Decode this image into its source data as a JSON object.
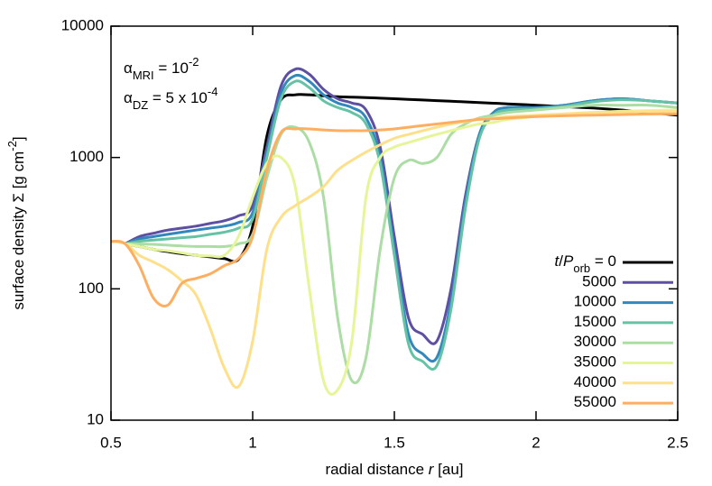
{
  "chart_data": {
    "type": "line",
    "xlabel": [
      {
        "text": "radial distance "
      },
      {
        "text": "r",
        "style": "italic"
      },
      {
        "text": " [au]"
      }
    ],
    "ylabel": [
      {
        "text": "surface density Σ [g cm"
      },
      {
        "text": "-2",
        "style": "sup"
      },
      {
        "text": "]"
      }
    ],
    "annotations": [
      [
        {
          "text": "α"
        },
        {
          "text": "MRI",
          "style": "sub"
        },
        {
          "text": " = 10"
        },
        {
          "text": "-2",
          "style": "sup"
        }
      ],
      [
        {
          "text": "α"
        },
        {
          "text": "DZ",
          "style": "sub"
        },
        {
          "text": " = 5 x 10"
        },
        {
          "text": "-4",
          "style": "sup"
        }
      ]
    ],
    "legend_prefix": [
      {
        "text": "t",
        "style": "italic"
      },
      {
        "text": "/"
      },
      {
        "text": "P",
        "style": "italic"
      },
      {
        "text": "orb",
        "style": "sub"
      },
      {
        "text": " = "
      }
    ],
    "legend": "lower right",
    "log_y": true,
    "x": [
      0.5,
      0.55,
      0.6,
      0.65,
      0.7,
      0.75,
      0.8,
      0.85,
      0.9,
      0.95,
      1.0,
      1.05,
      1.1,
      1.15,
      1.2,
      1.25,
      1.3,
      1.35,
      1.4,
      1.45,
      1.5,
      1.55,
      1.6,
      1.65,
      1.7,
      1.75,
      1.8,
      1.85,
      1.9,
      2.0,
      2.1,
      2.2,
      2.3,
      2.4,
      2.5
    ],
    "series": [
      {
        "name": "0",
        "color": "#000000",
        "values": [
          null,
          220,
          210,
          200,
          192,
          185,
          180,
          175,
          170,
          168,
          300,
          1450,
          2750,
          3000,
          3000,
          2950,
          2900,
          2880,
          2860,
          2830,
          2800,
          2770,
          2740,
          2710,
          2680,
          2650,
          2620,
          2590,
          2560,
          2500,
          2440,
          2380,
          2300,
          2200,
          2100
        ]
      },
      {
        "name": "5000",
        "color": "#5e4fa2",
        "values": [
          null,
          220,
          250,
          265,
          280,
          290,
          300,
          315,
          330,
          360,
          430,
          1200,
          3500,
          4700,
          4300,
          3300,
          2800,
          2600,
          2300,
          1200,
          250,
          60,
          45,
          40,
          100,
          500,
          1500,
          2200,
          2400,
          2400,
          2500,
          2700,
          2800,
          2700,
          2600
        ]
      },
      {
        "name": "10000",
        "color": "#3288bd",
        "values": [
          null,
          220,
          240,
          250,
          260,
          270,
          280,
          290,
          300,
          320,
          380,
          1100,
          3100,
          4200,
          3800,
          3000,
          2600,
          2400,
          2000,
          1000,
          200,
          45,
          32,
          30,
          80,
          450,
          1500,
          2200,
          2400,
          2400,
          2500,
          2700,
          2800,
          2700,
          2600
        ]
      },
      {
        "name": "15000",
        "color": "#66c2a5",
        "values": [
          null,
          220,
          230,
          235,
          240,
          245,
          250,
          260,
          270,
          290,
          340,
          1000,
          2800,
          3800,
          3400,
          2700,
          2400,
          2200,
          1800,
          900,
          180,
          38,
          28,
          26,
          70,
          400,
          1400,
          2100,
          2300,
          2350,
          2450,
          2650,
          2750,
          2700,
          2600
        ]
      },
      {
        "name": "30000",
        "color": "#abdda4",
        "values": [
          null,
          220,
          220,
          218,
          215,
          212,
          210,
          210,
          210,
          220,
          260,
          700,
          1500,
          1700,
          1300,
          500,
          60,
          20,
          30,
          200,
          700,
          950,
          900,
          1000,
          1500,
          1800,
          2000,
          2100,
          2200,
          2300,
          2400,
          2500,
          2500,
          2500,
          2400
        ]
      },
      {
        "name": "35000",
        "color": "#e6f598",
        "values": [
          null,
          220,
          210,
          200,
          195,
          188,
          180,
          178,
          180,
          250,
          500,
          900,
          1000,
          600,
          100,
          20,
          17,
          40,
          500,
          1000,
          1200,
          1300,
          1400,
          1500,
          1600,
          1700,
          1800,
          1850,
          1950,
          2050,
          2130,
          2200,
          2250,
          2280,
          2300
        ]
      },
      {
        "name": "40000",
        "color": "#fee08b",
        "values": [
          230,
          220,
          180,
          160,
          140,
          115,
          90,
          50,
          25,
          18,
          40,
          200,
          350,
          430,
          500,
          600,
          800,
          950,
          1100,
          1250,
          1400,
          1500,
          1600,
          1700,
          1800,
          1880,
          1950,
          2000,
          2050,
          2100,
          2150,
          2200,
          2220,
          2240,
          2250
        ]
      },
      {
        "name": "55000",
        "color": "#fdae61",
        "values": [
          230,
          220,
          150,
          85,
          75,
          110,
          120,
          130,
          150,
          170,
          250,
          800,
          1550,
          1650,
          1650,
          1620,
          1600,
          1600,
          1600,
          1620,
          1650,
          1700,
          1750,
          1800,
          1850,
          1900,
          1950,
          1970,
          2000,
          2050,
          2080,
          2100,
          2120,
          2140,
          2150
        ]
      }
    ],
    "xlim": [
      0.5,
      2.5
    ],
    "xticks": [
      0.5,
      1,
      1.5,
      2,
      2.5
    ],
    "ylim": [
      10,
      10000
    ],
    "yticks": [
      10,
      100,
      1000,
      10000
    ]
  }
}
